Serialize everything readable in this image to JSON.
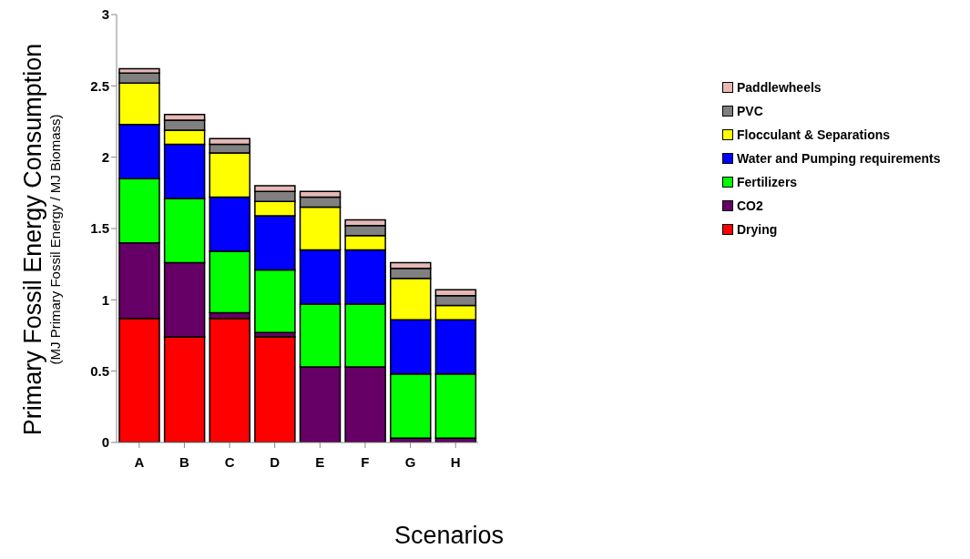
{
  "chart_data": {
    "type": "bar",
    "stacked": true,
    "xlabel": "Scenarios",
    "ylabel": "Primary Fossil Energy Consumption\n(MJ Primary Fossil Energy / MJ Biomass)",
    "categories": [
      "A",
      "B",
      "C",
      "D",
      "E",
      "F",
      "G",
      "H"
    ],
    "series": [
      {
        "name": "Drying",
        "color": "#ff0000",
        "values": [
          0.87,
          0.74,
          0.87,
          0.74,
          0,
          0,
          0,
          0
        ]
      },
      {
        "name": "CO2",
        "color": "#660066",
        "values": [
          0.53,
          0.52,
          0.04,
          0.03,
          0.53,
          0.53,
          0.03,
          0.03
        ]
      },
      {
        "name": "Fertilizers",
        "color": "#00ff00",
        "values": [
          0.45,
          0.45,
          0.43,
          0.44,
          0.44,
          0.44,
          0.45,
          0.45
        ]
      },
      {
        "name": "Water and Pumping requirements",
        "color": "#0000ff",
        "values": [
          0.38,
          0.38,
          0.38,
          0.38,
          0.38,
          0.38,
          0.38,
          0.38
        ]
      },
      {
        "name": "Flocculant & Separations",
        "color": "#ffff00",
        "values": [
          0.29,
          0.1,
          0.31,
          0.1,
          0.3,
          0.1,
          0.29,
          0.1
        ]
      },
      {
        "name": "PVC",
        "color": "#808080",
        "values": [
          0.07,
          0.07,
          0.06,
          0.07,
          0.07,
          0.07,
          0.07,
          0.07
        ]
      },
      {
        "name": "Paddlewheels",
        "color": "#e6b8b7",
        "values": [
          0.03,
          0.04,
          0.04,
          0.04,
          0.04,
          0.04,
          0.04,
          0.04
        ]
      }
    ],
    "ylim": [
      0,
      3
    ],
    "yticks": [
      0,
      0.5,
      1,
      1.5,
      2,
      2.5,
      3
    ],
    "grid": false,
    "legend": "right"
  }
}
